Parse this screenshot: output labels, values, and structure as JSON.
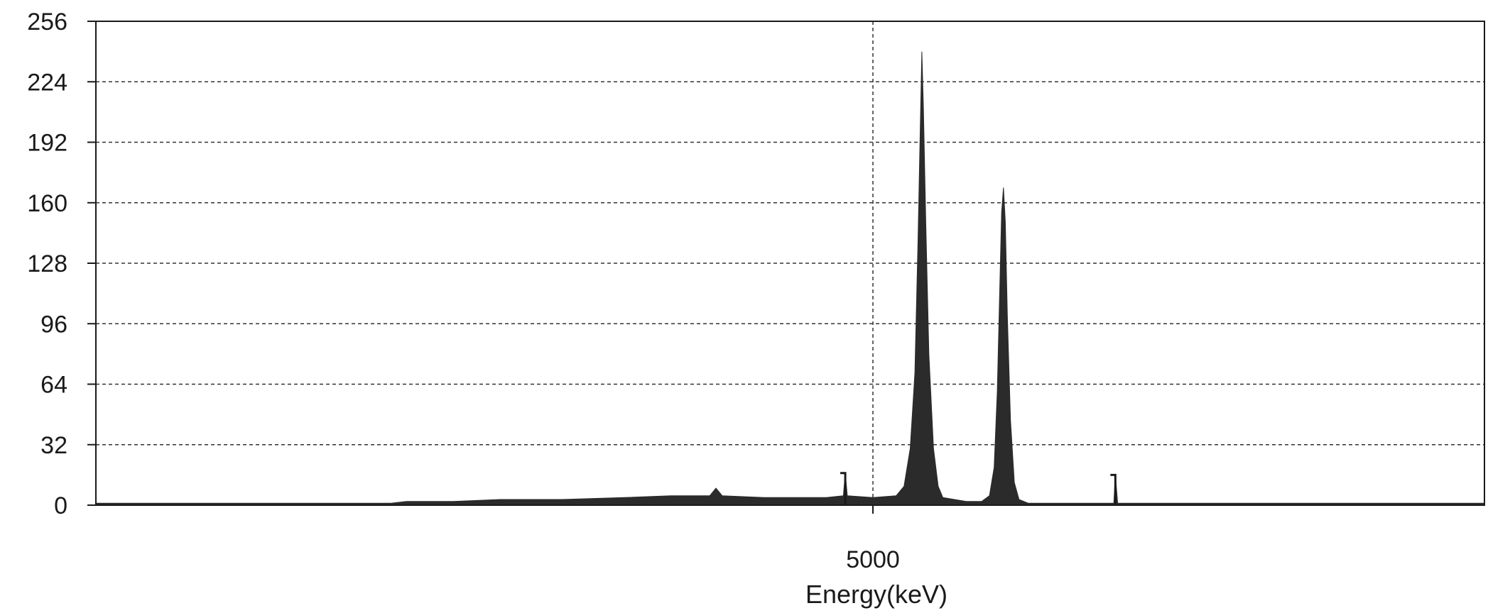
{
  "chart_data": {
    "type": "area",
    "title": "",
    "xlabel": "Energy(keV)",
    "ylabel": "",
    "xlim": [
      0,
      8935
    ],
    "ylim": [
      0,
      256
    ],
    "x_ticks": [
      5000
    ],
    "y_ticks": [
      0,
      32,
      64,
      96,
      128,
      160,
      192,
      224,
      256
    ],
    "grid": {
      "horizontal": true,
      "vertical": true,
      "style": "dashed"
    },
    "series": [
      {
        "color": "#2b2b2b",
        "points": [
          [
            0,
            1
          ],
          [
            1000,
            1
          ],
          [
            1900,
            1
          ],
          [
            2000,
            2
          ],
          [
            2300,
            2
          ],
          [
            2600,
            3
          ],
          [
            3000,
            3
          ],
          [
            3400,
            4
          ],
          [
            3700,
            5
          ],
          [
            3950,
            5
          ],
          [
            3990,
            9
          ],
          [
            4030,
            5
          ],
          [
            4300,
            4
          ],
          [
            4700,
            4
          ],
          [
            4810,
            5
          ],
          [
            4822,
            17
          ],
          [
            4835,
            5
          ],
          [
            5000,
            4
          ],
          [
            5150,
            5
          ],
          [
            5200,
            10
          ],
          [
            5240,
            30
          ],
          [
            5270,
            70
          ],
          [
            5290,
            140
          ],
          [
            5305,
            200
          ],
          [
            5315,
            240
          ],
          [
            5325,
            210
          ],
          [
            5340,
            150
          ],
          [
            5360,
            80
          ],
          [
            5390,
            30
          ],
          [
            5420,
            10
          ],
          [
            5450,
            4
          ],
          [
            5600,
            2
          ],
          [
            5700,
            2
          ],
          [
            5750,
            5
          ],
          [
            5780,
            20
          ],
          [
            5800,
            60
          ],
          [
            5815,
            110
          ],
          [
            5828,
            155
          ],
          [
            5840,
            168
          ],
          [
            5852,
            150
          ],
          [
            5865,
            100
          ],
          [
            5885,
            45
          ],
          [
            5910,
            12
          ],
          [
            5940,
            3
          ],
          [
            6000,
            1
          ],
          [
            6550,
            1
          ],
          [
            6560,
            16
          ],
          [
            6575,
            1
          ],
          [
            7500,
            1
          ],
          [
            8935,
            1
          ]
        ]
      }
    ],
    "markers": [
      {
        "x": 4822,
        "y": 17
      },
      {
        "x": 6560,
        "y": 16
      }
    ]
  }
}
